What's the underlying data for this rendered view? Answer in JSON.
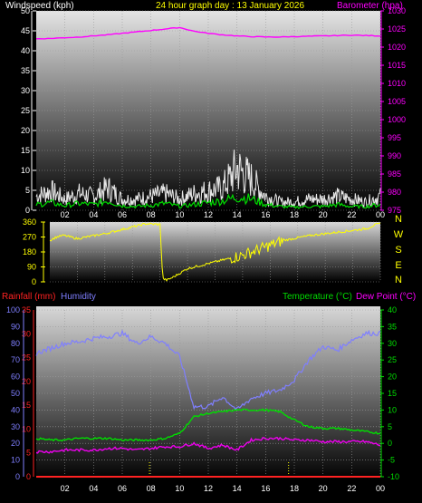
{
  "colors": {
    "wind": "#ffffff",
    "gust": "#e8e8e8",
    "windAvg": "#00dd00",
    "baro": "#ff00ff",
    "dir": "#ffff00",
    "rain": "#ff2222",
    "humidity": "#7f7fff",
    "temperature": "#00dd00",
    "dewpoint": "#ee00ee",
    "labelYellow": "#ffff00",
    "axisWhite": "#ffffff"
  },
  "chart_data": [
    {
      "type": "line",
      "title": "24 hour graph day : 13 January 2026",
      "left_axis": {
        "label": "Windspeed (kph)",
        "range": [
          0,
          50
        ],
        "ticks": [
          "0",
          "5",
          "10",
          "15",
          "20",
          "25",
          "30",
          "35",
          "40",
          "45",
          "50"
        ]
      },
      "right_axis": {
        "label": "Barometer (hpa)",
        "range": [
          975,
          1030
        ],
        "ticks": [
          "975",
          "980",
          "985",
          "990",
          "995",
          "1000",
          "1005",
          "1010",
          "1015",
          "1020",
          "1025",
          "1030"
        ]
      },
      "x_ticks": [
        "02",
        "04",
        "06",
        "08",
        "10",
        "12",
        "14",
        "16",
        "18",
        "20",
        "22",
        "00"
      ],
      "series": [
        {
          "name": "Barometer (hpa)",
          "axis": "right",
          "x": [
            0,
            1,
            2,
            3,
            4,
            5,
            6,
            7,
            8,
            9,
            10,
            11,
            12,
            13,
            14,
            15,
            16,
            17,
            18,
            19,
            20,
            21,
            22,
            23,
            24
          ],
          "values": [
            1022.3,
            1022.4,
            1022.6,
            1022.8,
            1023.1,
            1023.4,
            1023.8,
            1024.2,
            1024.6,
            1025.0,
            1025.4,
            1024.4,
            1023.8,
            1023.4,
            1023.1,
            1022.9,
            1022.8,
            1022.8,
            1022.9,
            1023.0,
            1023.1,
            1023.2,
            1023.3,
            1023.2,
            1023.1
          ]
        },
        {
          "name": "wind_avg",
          "axis": "left",
          "x": [
            0,
            1,
            2,
            3,
            4,
            5,
            6,
            7,
            8,
            9,
            10,
            11,
            12,
            13,
            14,
            15,
            16,
            17,
            18,
            19,
            20,
            21,
            22,
            23,
            24
          ],
          "values": [
            1.5,
            2,
            1.2,
            1.8,
            1.5,
            2.5,
            1.2,
            1,
            1.3,
            1.8,
            1,
            1.5,
            2,
            2.5,
            3.5,
            3,
            1.5,
            1,
            0.8,
            1,
            1,
            1.5,
            1,
            1,
            1.5
          ]
        },
        {
          "name": "wind_gust",
          "axis": "left",
          "x": [
            0,
            1,
            2,
            3,
            4,
            5,
            6,
            7,
            8,
            9,
            10,
            11,
            12,
            13,
            14,
            15,
            16,
            17,
            18,
            19,
            20,
            21,
            22,
            23,
            24
          ],
          "values": [
            5,
            7,
            4,
            6,
            5,
            8,
            4,
            4,
            5,
            6,
            4,
            6,
            7,
            8,
            15,
            11,
            5,
            3,
            3,
            4,
            4,
            5,
            4,
            3,
            5
          ]
        }
      ]
    },
    {
      "type": "scatter",
      "title": "",
      "left_axis": {
        "range": [
          0,
          360
        ],
        "ticks": [
          "0",
          "90",
          "180",
          "270",
          "360"
        ]
      },
      "right_axis": {
        "ticks": [
          "N",
          "W",
          "S",
          "E",
          "N"
        ]
      },
      "series": [
        {
          "name": "wind_direction",
          "x": [
            0,
            0.5,
            1,
            2,
            3,
            4,
            5,
            6,
            7,
            8,
            8.2,
            8.5,
            9,
            10,
            11,
            12,
            13,
            14,
            15,
            16,
            17,
            18,
            19,
            20,
            21,
            22,
            23,
            23.5,
            24
          ],
          "values": [
            250,
            270,
            280,
            260,
            275,
            290,
            310,
            330,
            350,
            345,
            20,
            10,
            30,
            80,
            100,
            120,
            140,
            160,
            190,
            220,
            250,
            265,
            280,
            290,
            300,
            310,
            320,
            340,
            350
          ]
        }
      ]
    },
    {
      "type": "line",
      "title": "",
      "left_axis_outer": {
        "label": "Humidity",
        "range": [
          0,
          100
        ],
        "ticks": [
          "0",
          "10",
          "20",
          "30",
          "40",
          "50",
          "60",
          "70",
          "80",
          "90",
          "100"
        ]
      },
      "left_axis_inner": {
        "label": "Rainfall (mm)",
        "range": [
          0,
          35
        ],
        "ticks": [
          "0",
          "5",
          "10",
          "15",
          "20",
          "25",
          "30",
          "35"
        ]
      },
      "right_axis": {
        "label_1": "Temperature (°C)",
        "label_2": "Dew Point (°C)",
        "range": [
          -10,
          40
        ],
        "ticks": [
          "-10",
          "-5",
          "0",
          "5",
          "10",
          "15",
          "20",
          "25",
          "30",
          "35",
          "40"
        ]
      },
      "x_ticks": [
        "02",
        "04",
        "06",
        "08",
        "10",
        "12",
        "14",
        "16",
        "18",
        "20",
        "22",
        "00"
      ],
      "series": [
        {
          "name": "Humidity",
          "axis": "left_outer",
          "x": [
            0,
            1,
            2,
            3,
            4,
            5,
            6,
            7,
            8,
            9,
            10,
            11,
            12,
            13,
            14,
            15,
            16,
            17,
            18,
            19,
            20,
            21,
            22,
            23,
            24
          ],
          "values": [
            74,
            77,
            80,
            81,
            83,
            84,
            86,
            80,
            84,
            80,
            72,
            42,
            42,
            48,
            40,
            47,
            50,
            52,
            58,
            70,
            78,
            76,
            82,
            86,
            86
          ]
        },
        {
          "name": "Temperature (°C)",
          "axis": "right",
          "x": [
            0,
            1,
            2,
            3,
            4,
            5,
            6,
            7,
            8,
            9,
            10,
            11,
            12,
            13,
            14,
            15,
            16,
            17,
            18,
            19,
            20,
            21,
            22,
            23,
            24
          ],
          "values": [
            1.5,
            1,
            1,
            1.5,
            1.5,
            1.5,
            1,
            1,
            1,
            1.5,
            3,
            8,
            9,
            9.5,
            10,
            10,
            10,
            9.5,
            7,
            5,
            4.5,
            4.5,
            4,
            3.5,
            3
          ]
        },
        {
          "name": "Dew Point (°C)",
          "axis": "right",
          "x": [
            0,
            1,
            2,
            3,
            4,
            5,
            6,
            7,
            8,
            9,
            10,
            11,
            12,
            13,
            14,
            15,
            16,
            17,
            18,
            19,
            20,
            21,
            22,
            23,
            24
          ],
          "values": [
            -2.5,
            -2.5,
            -2,
            -2,
            -2,
            -1.5,
            -1.5,
            -2,
            -1.5,
            -1,
            -1,
            0,
            -1.5,
            -0.5,
            -2,
            1,
            1.5,
            1.5,
            1,
            1,
            0.5,
            0.5,
            0.5,
            0.5,
            -0.5
          ]
        },
        {
          "name": "Rainfall (mm)",
          "axis": "left_inner",
          "x": [
            0,
            24
          ],
          "values": [
            0,
            0
          ]
        }
      ]
    }
  ]
}
